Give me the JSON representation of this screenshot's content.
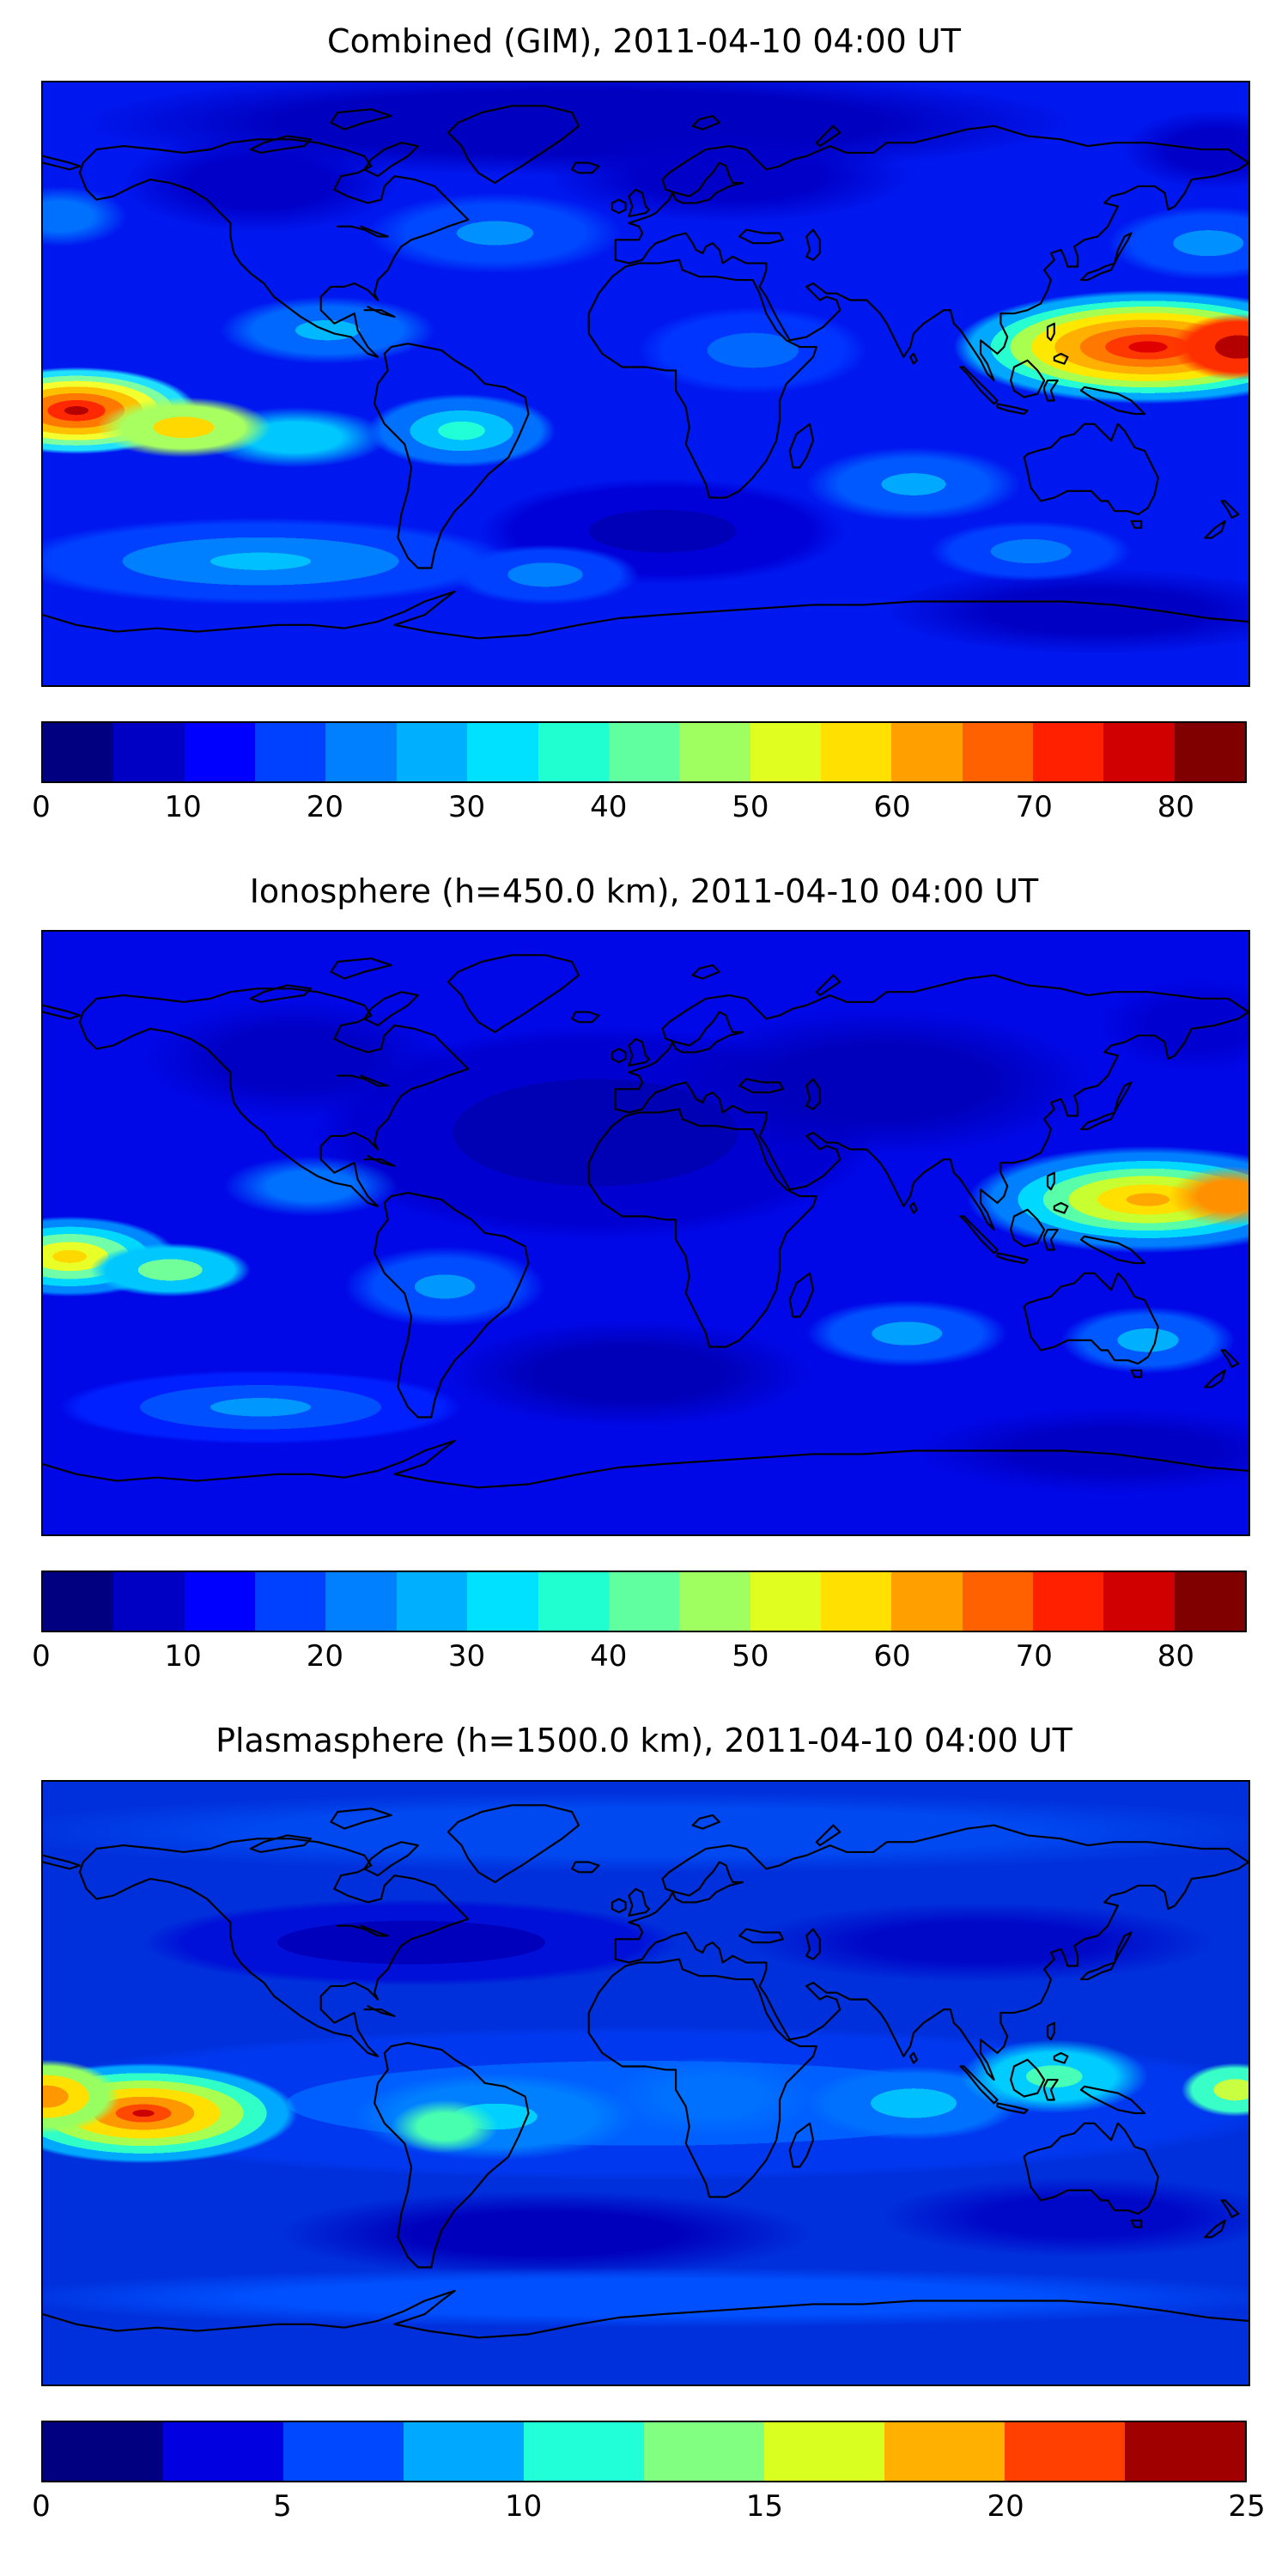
{
  "panels": [
    {
      "title": "Combined (GIM), 2011-04-10 04:00 UT",
      "colorbar": {
        "vmin": 0,
        "vmax": 85,
        "ticks": [
          0,
          10,
          20,
          30,
          40,
          50,
          60,
          70,
          80
        ],
        "colors": [
          "#000080",
          "#0000c4",
          "#0000ff",
          "#0040ff",
          "#0080ff",
          "#00b0ff",
          "#00e0ff",
          "#20ffd0",
          "#60ffa0",
          "#a0ff60",
          "#e0ff20",
          "#ffe000",
          "#ffa000",
          "#ff6000",
          "#ff2000",
          "#d00000",
          "#800000"
        ]
      }
    },
    {
      "title": "Ionosphere  (h=450.0 km), 2011-04-10 04:00 UT",
      "colorbar": {
        "vmin": 0,
        "vmax": 85,
        "ticks": [
          0,
          10,
          20,
          30,
          40,
          50,
          60,
          70,
          80
        ],
        "colors": [
          "#000080",
          "#0000c4",
          "#0000ff",
          "#0040ff",
          "#0080ff",
          "#00b0ff",
          "#00e0ff",
          "#20ffd0",
          "#60ffa0",
          "#a0ff60",
          "#e0ff20",
          "#ffe000",
          "#ffa000",
          "#ff6000",
          "#ff2000",
          "#d00000",
          "#800000"
        ]
      }
    },
    {
      "title": "Plasmasphere (h=1500.0 km), 2011-04-10 04:00 UT",
      "colorbar": {
        "vmin": 0,
        "vmax": 25,
        "ticks": [
          0,
          5,
          10,
          15,
          20,
          25
        ],
        "colors": [
          "#000080",
          "#0000e0",
          "#0048ff",
          "#00a8ff",
          "#20ffd8",
          "#80ff80",
          "#d8ff20",
          "#ffb000",
          "#ff4000",
          "#a00000"
        ]
      }
    }
  ],
  "chart_data": [
    {
      "type": "heatmap",
      "title": "Combined (GIM), 2011-04-10 04:00 UT",
      "projection": "equirectangular",
      "lon_range": [
        -180,
        180
      ],
      "lat_range": [
        -90,
        90
      ],
      "colormap": "jet",
      "contour_step": 5,
      "value_range": [
        0,
        85
      ],
      "colorbar_ticks": [
        0,
        10,
        20,
        30,
        40,
        50,
        60,
        70,
        80
      ],
      "maxima": [
        {
          "lon": 175,
          "lat": 10,
          "value": 82,
          "region": "western Pacific / SE Asia equatorial anomaly"
        },
        {
          "lon": -170,
          "lat": -8,
          "value": 79,
          "region": "near dateline south of equator (left map edge)"
        }
      ],
      "minima": [
        {
          "value": 3,
          "region": "high latitudes and south-central Atlantic"
        }
      ]
    },
    {
      "type": "heatmap",
      "title": "Ionosphere  (h=450.0 km), 2011-04-10 04:00 UT",
      "projection": "equirectangular",
      "lon_range": [
        -180,
        180
      ],
      "lat_range": [
        -90,
        90
      ],
      "colormap": "jet",
      "contour_step": 5,
      "value_range": [
        0,
        85
      ],
      "colorbar_ticks": [
        0,
        10,
        20,
        30,
        40,
        50,
        60,
        70,
        80
      ],
      "maxima": [
        {
          "lon": 172,
          "lat": 11,
          "value": 68,
          "region": "western Pacific / SE Asia"
        },
        {
          "lon": -172,
          "lat": -7,
          "value": 60,
          "region": "near dateline (left map edge)"
        }
      ],
      "minima": [
        {
          "value": 2,
          "region": "nightside: Atlantic, Europe, Africa, central Asia"
        }
      ]
    },
    {
      "type": "heatmap",
      "title": "Plasmasphere (h=1500.0 km), 2011-04-10 04:00 UT",
      "projection": "equirectangular",
      "lon_range": [
        -180,
        180
      ],
      "lat_range": [
        -90,
        90
      ],
      "colormap": "jet",
      "contour_step": 2.5,
      "value_range": [
        0,
        25
      ],
      "colorbar_ticks": [
        0,
        5,
        10,
        15,
        20,
        25
      ],
      "maxima": [
        {
          "lon": -152,
          "lat": -9,
          "value": 24,
          "region": "central Pacific south of equator"
        },
        {
          "lon": 122,
          "lat": 2,
          "value": 13,
          "region": "maritime continent"
        }
      ],
      "minima": [
        {
          "value": 1,
          "region": "mid-latitude troughs north and south"
        }
      ]
    }
  ]
}
